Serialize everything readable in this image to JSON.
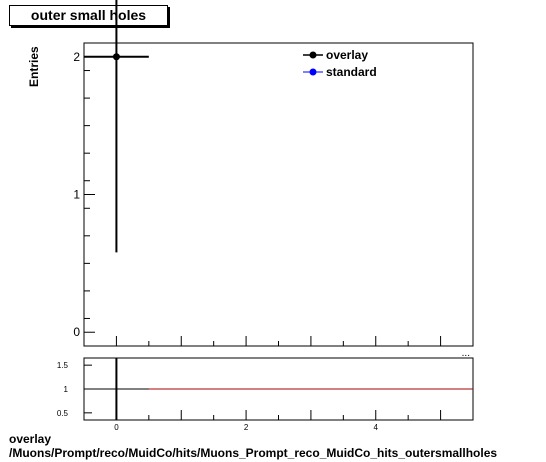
{
  "title": "outer small holes",
  "caption_line1": "overlay",
  "caption_line2": "/Muons/Prompt/reco/MuidCo/hits/Muons_Prompt_reco_MuidCo_hits_outersmallholes",
  "ylabel": "Entries",
  "xlabel_partial": "...",
  "chart_data": [
    {
      "type": "scatter",
      "x_ticks": [
        "0",
        "2",
        "4"
      ],
      "y_ticks": [
        "0",
        "1",
        "2"
      ],
      "xlim": [
        -0.5,
        5.5
      ],
      "ylim": [
        -0.1,
        2.1
      ],
      "series": [
        {
          "name": "overlay",
          "color": "#000000",
          "points": [
            {
              "x": 0,
              "y": 2,
              "xerr": 0.5,
              "yerr_low": 1.42,
              "yerr_high": 1.0
            }
          ]
        },
        {
          "name": "standard",
          "color": "#0000ff",
          "points": []
        }
      ],
      "legend": [
        "overlay",
        "standard"
      ],
      "legend_position": "top-right"
    },
    {
      "type": "line",
      "y_ticks": [
        "0.5",
        "1",
        "1.5"
      ],
      "xlim": [
        -0.5,
        5.5
      ],
      "ylim": [
        0.35,
        1.65
      ],
      "ratio_value": 1,
      "ratio_color": "#aa0000"
    }
  ]
}
